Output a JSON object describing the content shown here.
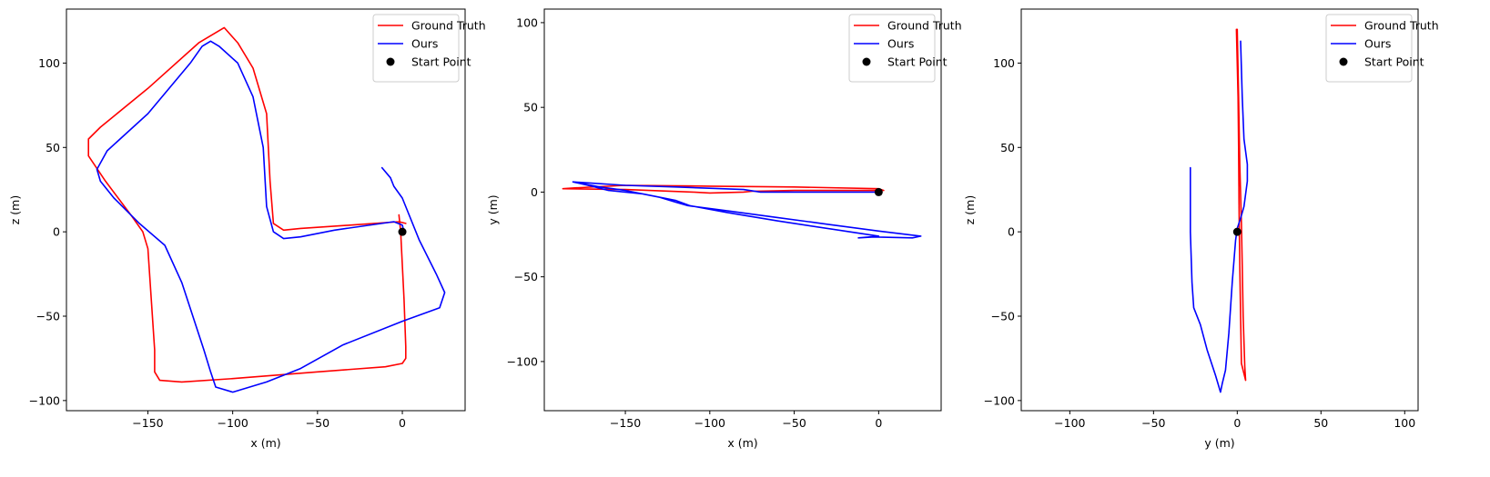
{
  "chart_data": [
    {
      "type": "line",
      "xlabel": "x (m)",
      "ylabel": "z (m)",
      "xlim": [
        -198,
        37
      ],
      "ylim": [
        -106,
        132
      ],
      "xticks": [
        -150,
        -100,
        -50,
        0
      ],
      "xtick_labels": [
        "−150",
        "−100",
        "−50",
        "0"
      ],
      "yticks": [
        -100,
        -50,
        0,
        50,
        100
      ],
      "ytick_labels": [
        "−100",
        "−50",
        "0",
        "50",
        "100"
      ],
      "grid": false,
      "legend_position": "top-right",
      "series": [
        {
          "name": "Ground Truth",
          "color": "#ff0000",
          "points": [
            [
              -2,
              10
            ],
            [
              -1,
              0
            ],
            [
              1,
              -40
            ],
            [
              2,
              -68
            ],
            [
              2,
              -75
            ],
            [
              0,
              -78
            ],
            [
              -10,
              -80
            ],
            [
              -50,
              -83
            ],
            [
              -100,
              -87
            ],
            [
              -130,
              -89
            ],
            [
              -143,
              -88
            ],
            [
              -146,
              -83
            ],
            [
              -146,
              -70
            ],
            [
              -148,
              -40
            ],
            [
              -150,
              -10
            ],
            [
              -153,
              0
            ],
            [
              -160,
              10
            ],
            [
              -175,
              30
            ],
            [
              -185,
              45
            ],
            [
              -185,
              55
            ],
            [
              -178,
              62
            ],
            [
              -150,
              85
            ],
            [
              -120,
              112
            ],
            [
              -105,
              121
            ],
            [
              -97,
              112
            ],
            [
              -88,
              97
            ],
            [
              -80,
              70
            ],
            [
              -78,
              30
            ],
            [
              -76,
              5
            ],
            [
              -70,
              1
            ],
            [
              -60,
              2
            ],
            [
              -30,
              4
            ],
            [
              -2,
              6
            ],
            [
              2,
              5
            ]
          ]
        },
        {
          "name": "Ours",
          "color": "#0000ff",
          "points": [
            [
              -12,
              38
            ],
            [
              -7,
              32
            ],
            [
              -5,
              27
            ],
            [
              0,
              20
            ],
            [
              10,
              -5
            ],
            [
              20,
              -25
            ],
            [
              25,
              -36
            ],
            [
              22,
              -45
            ],
            [
              0,
              -53
            ],
            [
              -35,
              -67
            ],
            [
              -60,
              -81
            ],
            [
              -80,
              -89
            ],
            [
              -100,
              -95
            ],
            [
              -110,
              -92
            ],
            [
              -113,
              -83
            ],
            [
              -117,
              -70
            ],
            [
              -130,
              -30
            ],
            [
              -140,
              -8
            ],
            [
              -155,
              5
            ],
            [
              -170,
              20
            ],
            [
              -178,
              30
            ],
            [
              -180,
              37
            ],
            [
              -174,
              48
            ],
            [
              -150,
              70
            ],
            [
              -125,
              100
            ],
            [
              -118,
              110
            ],
            [
              -113,
              113
            ],
            [
              -108,
              110
            ],
            [
              -97,
              100
            ],
            [
              -88,
              80
            ],
            [
              -82,
              50
            ],
            [
              -80,
              15
            ],
            [
              -76,
              0
            ],
            [
              -70,
              -4
            ],
            [
              -60,
              -3
            ],
            [
              -40,
              1
            ],
            [
              -5,
              6
            ],
            [
              0,
              4
            ],
            [
              1,
              0
            ]
          ]
        },
        {
          "name": "Start Point",
          "color": "#000000",
          "marker": "circle",
          "points": [
            [
              0,
              0
            ]
          ]
        }
      ]
    },
    {
      "type": "line",
      "xlabel": "x (m)",
      "ylabel": "y (m)",
      "xlim": [
        -198,
        37
      ],
      "ylim": [
        -129,
        108
      ],
      "xticks": [
        -150,
        -100,
        -50,
        0
      ],
      "xtick_labels": [
        "−150",
        "−100",
        "−50",
        "0"
      ],
      "yticks": [
        -100,
        -50,
        0,
        50,
        100
      ],
      "ytick_labels": [
        "−100",
        "−50",
        "0",
        "50",
        "100"
      ],
      "grid": false,
      "legend_position": "top-right",
      "series": [
        {
          "name": "Ground Truth",
          "color": "#ff0000",
          "points": [
            [
              -187,
              2
            ],
            [
              -150,
              1.5
            ],
            [
              -110,
              0
            ],
            [
              -100,
              -0.5
            ],
            [
              -80,
              0
            ],
            [
              -75,
              0.5
            ],
            [
              -50,
              1
            ],
            [
              -20,
              1
            ],
            [
              0,
              1
            ],
            [
              3,
              1
            ],
            [
              0,
              2
            ],
            [
              -50,
              3
            ],
            [
              -100,
              3.5
            ],
            [
              -150,
              4
            ],
            [
              -180,
              2.5
            ],
            [
              -187,
              2
            ]
          ]
        },
        {
          "name": "Ours",
          "color": "#0000ff",
          "points": [
            [
              -181,
              6
            ],
            [
              -165,
              3
            ],
            [
              -150,
              1
            ],
            [
              -130,
              -3
            ],
            [
              -120,
              -6
            ],
            [
              -113,
              -8
            ],
            [
              -90,
              -11
            ],
            [
              -60,
              -15
            ],
            [
              -30,
              -19
            ],
            [
              0,
              -23
            ],
            [
              25,
              -26
            ],
            [
              20,
              -27
            ],
            [
              -3,
              -26.5
            ],
            [
              -12,
              -27
            ],
            [
              0,
              -26
            ],
            [
              -20,
              -23
            ],
            [
              -60,
              -17
            ],
            [
              -90,
              -12
            ],
            [
              -112,
              -8
            ],
            [
              -120,
              -5
            ],
            [
              -140,
              -1
            ],
            [
              -160,
              1
            ],
            [
              -170,
              3.5
            ],
            [
              -181,
              6
            ],
            [
              -150,
              4
            ],
            [
              -120,
              3
            ],
            [
              -80,
              1.5
            ],
            [
              -70,
              0
            ],
            [
              -50,
              0
            ],
            [
              0,
              0
            ]
          ]
        },
        {
          "name": "Start Point",
          "color": "#000000",
          "marker": "circle",
          "points": [
            [
              0,
              0
            ]
          ]
        }
      ]
    },
    {
      "type": "line",
      "xlabel": "y (m)",
      "ylabel": "z (m)",
      "xlim": [
        -129,
        108
      ],
      "ylim": [
        -106,
        132
      ],
      "xticks": [
        -100,
        -50,
        0,
        50,
        100
      ],
      "xtick_labels": [
        "−100",
        "−50",
        "0",
        "50",
        "100"
      ],
      "yticks": [
        -100,
        -50,
        0,
        50,
        100
      ],
      "ytick_labels": [
        "−100",
        "−50",
        "0",
        "50",
        "100"
      ],
      "grid": false,
      "legend_position": "top-right",
      "series": [
        {
          "name": "Ground Truth",
          "color": "#ff0000",
          "points": [
            [
              -0.5,
              120
            ],
            [
              0,
              100
            ],
            [
              0.5,
              80
            ],
            [
              0.8,
              50
            ],
            [
              1,
              20
            ],
            [
              1.2,
              5
            ],
            [
              1.5,
              -20
            ],
            [
              2,
              -50
            ],
            [
              2.5,
              -78
            ],
            [
              5,
              -88
            ],
            [
              4.5,
              -80
            ],
            [
              3.5,
              -50
            ],
            [
              3,
              -20
            ],
            [
              2.5,
              5
            ],
            [
              1.5,
              40
            ],
            [
              0.8,
              80
            ],
            [
              0,
              120
            ]
          ]
        },
        {
          "name": "Ours",
          "color": "#0000ff",
          "points": [
            [
              2,
              113
            ],
            [
              3,
              80
            ],
            [
              4,
              55
            ],
            [
              6,
              40
            ],
            [
              6,
              30
            ],
            [
              4,
              15
            ],
            [
              2,
              8
            ],
            [
              0,
              2
            ],
            [
              -1,
              -5
            ],
            [
              -3,
              -30
            ],
            [
              -5,
              -60
            ],
            [
              -7,
              -82
            ],
            [
              -9,
              -90
            ],
            [
              -10,
              -95
            ],
            [
              -13,
              -85
            ],
            [
              -18,
              -70
            ],
            [
              -22,
              -55
            ],
            [
              -26,
              -45
            ],
            [
              -27,
              -30
            ],
            [
              -28,
              0
            ],
            [
              -28,
              30
            ],
            [
              -28,
              38
            ]
          ]
        },
        {
          "name": "Start Point",
          "color": "#000000",
          "marker": "circle",
          "points": [
            [
              0,
              0
            ]
          ]
        }
      ]
    }
  ]
}
